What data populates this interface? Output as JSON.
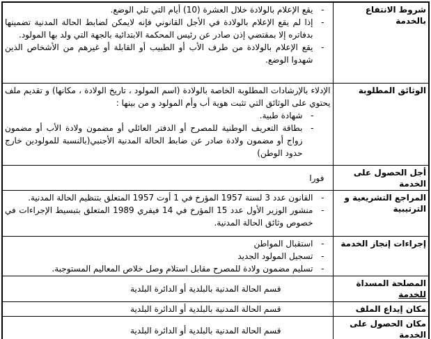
{
  "colors": {
    "border": "#000000",
    "text": "#000000",
    "background": "#ffffff"
  },
  "bullet_marker": "-",
  "rows": [
    {
      "header": "شروط الانتفاع بالخدمة",
      "bullets": [
        "يقع الإعلام بالولادة خلال العشرة (10) أيام التي تلي الوضع.",
        "إذا لم يقع الإعلام بالولادة في الأجل القانوني فإنه لايمكن لضابط الحالة المدنية تضمينها بدفاتره إلا بمقتضي إذن صادر عن رئيس المحكمة الابتدائية بالجهة التي ولد بها المولود.",
        "يقع الإعلام بالولادة من طرف الأب أو الطبيب أو القابلة أو غيرهم من الأشخاص الذين شهدوا الوضع."
      ]
    },
    {
      "header": "الوثائق المطلوبة",
      "intro": "الإدلاء بالإرشادات المطلوبة الخاصة بالولادة (اسم المولود ، تاريخ الولادة ، مكانها) و تقديم ملف يحتوي على الوثائق التي تثبت هوية أب وأم المولود و من بينها :",
      "bullets": [
        "شهادة طبية.",
        "بطاقة التعريف الوطنية للمصرح أو الدفتر العائلي أو مضمون ولادة الأب أو مضمون زواج أو مضمون ولادة صادر عن ضابط الحالة المدنية الأجنبي(بالنسبة للمولودين خارج حدود الوطن)"
      ]
    },
    {
      "header": "أجل الحصول على الخدمة",
      "text": "فورا"
    },
    {
      "header": "المراجع التشريعية و الترتيبية",
      "bullets": [
        "القانون عدد 3 لسنة 1957 المؤرخ في 1 أوت 1957 المتعلق بتنظيم الحالة المدنية.",
        "منشور الوزير الأول عدد 15 المؤرخ في 14 فيفري 1989 المتعلق بتبسيط الإجراءات في خصوص وثائق الحالة المدنية."
      ]
    },
    {
      "header": "إجراءات إنجاز الخدمة",
      "bullets": [
        "استقبال المواطن",
        "تسجيل المولود الجديد",
        "تسليم مضمون ولادة للمصرح مقابل استلام وصل خلاص المعاليم المستوجبة."
      ]
    },
    {
      "header_main": "المصلحة المسداة",
      "header_underlined": "للخدمة",
      "text": "قسم الحالة المدنية بالبلدية أو الدائرة البلدية"
    },
    {
      "header": "مكان إيداع الملف",
      "text": "قسم الحالة المدنية بالبلدية أو الدائرة البلدية"
    },
    {
      "header": "مكان الحصول على الخدمة",
      "text": "قسم الحالة المدنية بالبلدية أو الدائرة البلدية"
    }
  ]
}
